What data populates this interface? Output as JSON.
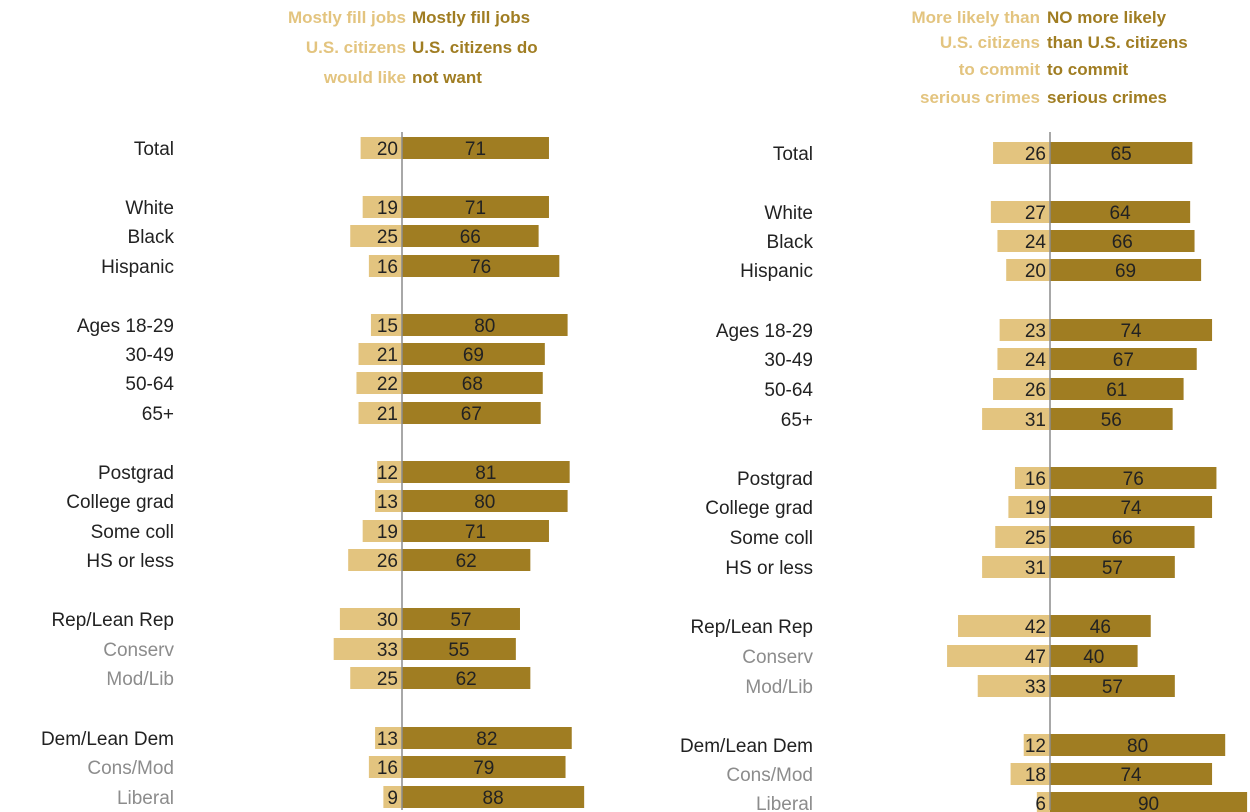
{
  "colors": {
    "light": "#e3c47f",
    "dark": "#a07d22",
    "axis": "#8c8c8c",
    "text": "#222222",
    "sub_text": "#8c8c8c"
  },
  "chart_data": [
    {
      "type": "bar",
      "orientation": "diverging-horizontal",
      "legend": {
        "light": [
          "Mostly fill jobs",
          "U.S. citizens",
          "would like"
        ],
        "dark": [
          "Mostly fill jobs",
          "U.S. citizens do",
          "not want"
        ]
      },
      "series": [
        {
          "key": "light",
          "values": [
            20,
            19,
            25,
            16,
            15,
            21,
            22,
            21,
            12,
            13,
            19,
            26,
            30,
            33,
            25,
            13,
            16,
            9
          ]
        },
        {
          "key": "dark",
          "values": [
            71,
            71,
            66,
            76,
            80,
            69,
            68,
            67,
            81,
            80,
            71,
            62,
            57,
            55,
            62,
            82,
            79,
            88
          ]
        }
      ],
      "categories": [
        "Total",
        "White",
        "Black",
        "Hispanic",
        "Ages 18-29",
        "30-49",
        "50-64",
        "65+",
        "Postgrad",
        "College grad",
        "Some coll",
        "HS or less",
        "Rep/Lean Rep",
        "Conserv",
        "Mod/Lib",
        "Dem/Lean Dem",
        "Cons/Mod",
        "Liberal"
      ],
      "subgroups": [
        false,
        false,
        false,
        false,
        false,
        false,
        false,
        false,
        false,
        false,
        false,
        false,
        false,
        true,
        true,
        false,
        true,
        true
      ]
    },
    {
      "type": "bar",
      "orientation": "diverging-horizontal",
      "legend": {
        "light": [
          "More likely than",
          "U.S. citizens",
          "to commit",
          "serious crimes"
        ],
        "dark": [
          "NO more likely",
          "than U.S. citizens",
          "to commit",
          "serious crimes"
        ]
      },
      "series": [
        {
          "key": "light",
          "values": [
            26,
            27,
            24,
            20,
            23,
            24,
            26,
            31,
            16,
            19,
            25,
            31,
            42,
            47,
            33,
            12,
            18,
            6
          ]
        },
        {
          "key": "dark",
          "values": [
            65,
            64,
            66,
            69,
            74,
            67,
            61,
            56,
            76,
            74,
            66,
            57,
            46,
            40,
            57,
            80,
            74,
            90
          ]
        }
      ],
      "categories": [
        "Total",
        "White",
        "Black",
        "Hispanic",
        "Ages 18-29",
        "30-49",
        "50-64",
        "65+",
        "Postgrad",
        "College grad",
        "Some coll",
        "HS or less",
        "Rep/Lean Rep",
        "Conserv",
        "Mod/Lib",
        "Dem/Lean Dem",
        "Cons/Mod",
        "Liberal"
      ],
      "subgroups": [
        false,
        false,
        false,
        false,
        false,
        false,
        false,
        false,
        false,
        false,
        false,
        false,
        false,
        true,
        true,
        false,
        true,
        true
      ]
    }
  ]
}
